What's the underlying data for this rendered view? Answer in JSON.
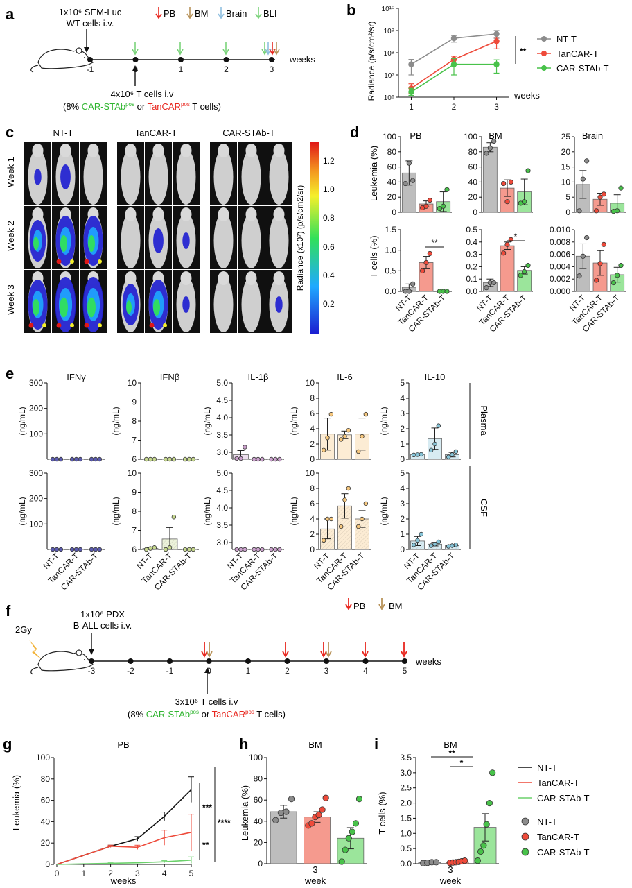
{
  "colors": {
    "ntt": "#8c8c8c",
    "tancar": "#ee4a3a",
    "stab": "#48c24a",
    "ntt_line": "#111111",
    "tancar_line": "#ee4a3a",
    "stab_line": "#6bd16b",
    "pb_arrow": "#e8271f",
    "bm_arrow": "#b8935a",
    "brain_arrow": "#8fbfe0",
    "bli_arrow": "#7bd37b",
    "cyt_ifng": "#5b5bb0",
    "cyt_ifnb": "#c7d98f",
    "cyt_il1b": "#caa0cc",
    "cyt_il6": "#f6c77d",
    "cyt_il10": "#86c4d8"
  },
  "panel_a": {
    "letter": "a",
    "injection_label": [
      "1x10⁶ SEM-Luc",
      "WT cells i.v."
    ],
    "legend": [
      {
        "label": "PB",
        "icon": "red-arrow-icon"
      },
      {
        "label": "BM",
        "icon": "brown-arrow-icon"
      },
      {
        "label": "Brain",
        "icon": "blue-arrow-icon"
      },
      {
        "label": "BLI",
        "icon": "green-arrow-icon"
      }
    ],
    "timeline_ticks": [
      "-1",
      "0",
      "1",
      "2",
      "3"
    ],
    "timeline_unit": "weeks",
    "tcell_label_line1": "4x10⁶ T cells i.v",
    "tcell_label_open": "(8% ",
    "tcell_stab": "CAR-STAb",
    "tcell_pos": "pos",
    "tcell_or": " or ",
    "tcell_tancar": "TanCAR",
    "tcell_close": " T cells)"
  },
  "panel_b": {
    "letter": "b",
    "ylabel": "Radiance (p/s/cm²/sr)",
    "xlabel": "weeks",
    "significance": "**",
    "legend": [
      "NT-T",
      "TanCAR-T",
      "CAR-STAb-T"
    ]
  },
  "panel_c": {
    "letter": "c",
    "groups": [
      "NT-T",
      "TanCAR-T",
      "CAR-STAb-T"
    ],
    "rows": [
      "Week 1",
      "Week 2",
      "Week 3"
    ],
    "colorbar_label": "Radiance (x10⁷) (p/s/cm2/sr)",
    "colorbar_ticks": [
      "1.2",
      "1.0",
      "0.8",
      "0.6",
      "0.4",
      "0.2"
    ]
  },
  "panel_d": {
    "letter": "d",
    "columns": [
      "PB",
      "BM",
      "Brain"
    ],
    "ylabel_top": "Leukemia (%)",
    "ylabel_bottom": "T cells (%)",
    "groups": [
      "NT-T",
      "TanCAR-T",
      "CAR-STAb-T"
    ],
    "sig_pb": "**",
    "sig_bm": "*"
  },
  "panel_e": {
    "letter": "e",
    "cytokines": [
      "IFNγ",
      "IFNβ",
      "IL-1β",
      "IL-6",
      "IL-10"
    ],
    "unit": "(ng/mL)",
    "row_labels": [
      "Plasma",
      "CSF"
    ],
    "groups": [
      "NT-T",
      "TanCAR-T",
      "CAR-STAb-T"
    ]
  },
  "panel_f": {
    "letter": "f",
    "irradiation": "2Gy",
    "injection_label": [
      "1x10⁶ PDX",
      "B-ALL cells i.v."
    ],
    "legend": [
      {
        "label": "PB",
        "icon": "red-arrow-icon"
      },
      {
        "label": "BM",
        "icon": "brown-arrow-icon"
      }
    ],
    "timeline_ticks": [
      "-3",
      "-2",
      "-1",
      "0",
      "1",
      "2",
      "3",
      "4",
      "5"
    ],
    "timeline_unit": "weeks",
    "tcell_label_line1": "3x10⁶ T cells i.v",
    "tcell_label_open": "(8% ",
    "tcell_stab": "CAR-STAb",
    "tcell_pos": "pos",
    "tcell_or": " or ",
    "tcell_tancar": "TanCAR",
    "tcell_close": " T cells)"
  },
  "panel_g": {
    "letter": "g",
    "title": "PB",
    "ylabel": "Leukemia (%)",
    "xlabel": "weeks",
    "sig": [
      "***",
      "**",
      "****"
    ]
  },
  "panel_h": {
    "letter": "h",
    "title": "BM",
    "ylabel": "Leukemia (%)",
    "xtick": "3",
    "xlabel": "week"
  },
  "panel_i": {
    "letter": "i",
    "title": "BM",
    "ylabel": "T cells (%)",
    "xtick": "3",
    "xlabel": "week",
    "sig": [
      "**",
      "*"
    ]
  },
  "legend_gi": {
    "lines": [
      "NT-T",
      "TanCAR-T",
      "CAR-STAb-T"
    ],
    "dots": [
      "NT-T",
      "TanCAR-T",
      "CAR-STAb-T"
    ]
  },
  "chart_data": [
    {
      "id": "b",
      "type": "line",
      "x": [
        1,
        2,
        3
      ],
      "xlim": [
        0.7,
        3.3
      ],
      "yscale": "log",
      "ylim": [
        1000000,
        10000000000
      ],
      "ytick_labels": [
        "10⁶",
        "10⁷",
        "10⁸",
        "10⁹",
        "10¹⁰"
      ],
      "xtick_labels": [
        "1",
        "2",
        "3"
      ],
      "series": [
        {
          "name": "NT-T",
          "values": [
            30000000,
            450000000,
            700000000
          ],
          "err": [
            [
              10000000,
              50000000
            ],
            [
              300000000,
              600000000
            ],
            [
              450000000,
              1000000000
            ]
          ]
        },
        {
          "name": "TanCAR-T",
          "values": [
            2500000,
            50000000,
            330000000
          ],
          "err": [
            [
              1500000,
              4000000
            ],
            [
              30000000,
              70000000
            ],
            [
              150000000,
              500000000
            ]
          ]
        },
        {
          "name": "CAR-STAb-T",
          "values": [
            1700000,
            30000000,
            30000000
          ],
          "err": [
            [
              1200000,
              2500000
            ],
            [
              10000000,
              55000000
            ],
            [
              12000000,
              48000000
            ]
          ]
        }
      ]
    },
    {
      "id": "d",
      "type": "bar",
      "categories": [
        "NT-T",
        "TanCAR-T",
        "CAR-STAb-T"
      ],
      "panels": [
        {
          "title": "PB",
          "measure": "Leukemia (%)",
          "ylim": [
            0,
            100
          ],
          "yticks": [
            "0",
            "20",
            "40",
            "60",
            "80",
            "100"
          ],
          "values": [
            52,
            11,
            14
          ],
          "sem": [
            16,
            4,
            13
          ],
          "points": [
            [
              38,
              65,
              42
            ],
            [
              6,
              8,
              16
            ],
            [
              5,
              8,
              30
            ]
          ]
        },
        {
          "title": "BM",
          "measure": "Leukemia (%)",
          "ylim": [
            0,
            100
          ],
          "yticks": [
            "0",
            "20",
            "40",
            "60",
            "80",
            "100"
          ],
          "values": [
            86,
            32,
            27
          ],
          "sem": [
            6,
            11,
            17
          ],
          "points": [
            [
              78,
              85,
              94
            ],
            [
              38,
              14,
              40
            ],
            [
              12,
              14,
              55
            ]
          ]
        },
        {
          "title": "Brain",
          "measure": "Leukemia (%)",
          "ylim": [
            0,
            25
          ],
          "yticks": [
            "0",
            "5",
            "10",
            "15",
            "20",
            "25"
          ],
          "values": [
            9.2,
            4.3,
            3.0
          ],
          "sem": [
            4.6,
            2.0,
            2.8
          ],
          "points": [
            [
              0.5,
              11,
              17
            ],
            [
              0.5,
              5,
              6
            ],
            [
              0.3,
              0.5,
              8
            ]
          ]
        },
        {
          "title": "PB",
          "measure": "T cells (%)",
          "ylim": [
            0,
            1.5
          ],
          "yticks": [
            "0.0",
            "0.5",
            "1.0",
            "1.5"
          ],
          "values": [
            0.1,
            0.7,
            0.0
          ],
          "sem": [
            0.08,
            0.15,
            0.005
          ],
          "points": [
            [
              0.0,
              0.0,
              0.18
            ],
            [
              0.5,
              0.7,
              0.92
            ],
            [
              0.0,
              0.0,
              0.0
            ]
          ]
        },
        {
          "title": "BM",
          "measure": "T cells (%)",
          "ylim": [
            0,
            0.5
          ],
          "yticks": [
            "0.0",
            "0.1",
            "0.2",
            "0.3",
            "0.4",
            "0.5"
          ],
          "values": [
            0.07,
            0.37,
            0.17
          ],
          "sem": [
            0.03,
            0.03,
            0.03
          ],
          "points": [
            [
              0.03,
              0.07,
              0.07
            ],
            [
              0.31,
              0.38,
              0.42
            ],
            [
              0.13,
              0.16,
              0.21
            ]
          ]
        },
        {
          "title": "Brain",
          "measure": "T cells (%)",
          "ylim": [
            0,
            0.01
          ],
          "yticks": [
            "0.000",
            "0.002",
            "0.004",
            "0.006",
            "0.008",
            "0.010"
          ],
          "values": [
            0.0057,
            0.0046,
            0.0027
          ],
          "sem": [
            0.002,
            0.002,
            0.0012
          ],
          "points": [
            [
              0.0025,
              0.0057,
              0.0087
            ],
            [
              0.0018,
              0.0045,
              0.0076
            ],
            [
              0.0014,
              0.0026,
              0.0042
            ]
          ]
        }
      ]
    },
    {
      "id": "e",
      "type": "bar",
      "categories": [
        "NT-T",
        "TanCAR-T",
        "CAR-STAb-T"
      ],
      "panels": [
        {
          "title": "IFNγ",
          "row": "Plasma",
          "ymin": 0,
          "ymax": 300,
          "yticks": [
            "100",
            "200",
            "300"
          ],
          "values": [
            0,
            0,
            0
          ],
          "points": [
            [
              0,
              0,
              0
            ],
            [
              0,
              0,
              0
            ],
            [
              0,
              0,
              0
            ]
          ]
        },
        {
          "title": "IFNβ",
          "row": "Plasma",
          "ymin": 6,
          "ymax": 10,
          "yticks": [
            "6",
            "7",
            "8",
            "9",
            "10"
          ],
          "values": [
            6,
            6,
            6
          ],
          "points": [
            [
              6,
              6,
              6
            ],
            [
              6,
              6,
              6
            ],
            [
              6,
              6,
              6
            ]
          ]
        },
        {
          "title": "IL-1β",
          "row": "Plasma",
          "ymin": 2.8,
          "ymax": 5.0,
          "yticks": [
            "3.0",
            "3.5",
            "4.0",
            "4.5",
            "5.0"
          ],
          "values": [
            2.93,
            2.8,
            2.8
          ],
          "sem": [
            0.12,
            0,
            0
          ],
          "points": [
            [
              2.82,
              2.82,
              3.15
            ],
            [
              2.8,
              2.8,
              2.8
            ],
            [
              2.8,
              2.8,
              2.8
            ]
          ]
        },
        {
          "title": "IL-6",
          "row": "Plasma",
          "ymin": 0,
          "ymax": 10,
          "yticks": [
            "0",
            "2",
            "4",
            "6",
            "8",
            "10"
          ],
          "values": [
            3.3,
            3.2,
            3.3
          ],
          "sem": [
            2.1,
            0.5,
            2.1
          ],
          "points": [
            [
              1.2,
              2.8,
              5.9
            ],
            [
              2.6,
              3.0,
              3.8
            ],
            [
              1.0,
              3.0,
              5.9
            ]
          ]
        },
        {
          "title": "IL-10",
          "row": "Plasma",
          "ymin": 0,
          "ymax": 5,
          "yticks": [
            "0",
            "1",
            "2",
            "3",
            "4",
            "5"
          ],
          "values": [
            0.3,
            1.35,
            0.3
          ],
          "sem": [
            0.05,
            0.7,
            0.15
          ],
          "points": [
            [
              0.28,
              0.3,
              0.32
            ],
            [
              0.6,
              1.0,
              2.2
            ],
            [
              0.15,
              0.3,
              0.5
            ]
          ]
        },
        {
          "title": "IFNγ",
          "row": "CSF",
          "ymin": 0,
          "ymax": 300,
          "yticks": [
            "100",
            "200",
            "300"
          ],
          "values": [
            0,
            0,
            0
          ],
          "points": [
            [
              0,
              0,
              0
            ],
            [
              0,
              0,
              0
            ],
            [
              0,
              0,
              0
            ]
          ]
        },
        {
          "title": "IFNβ",
          "row": "CSF",
          "ymin": 6,
          "ymax": 10,
          "yticks": [
            "6",
            "7",
            "8",
            "9",
            "10"
          ],
          "values": [
            6.05,
            6.55,
            6.0
          ],
          "sem": [
            0.05,
            0.6,
            0
          ],
          "points": [
            [
              6.0,
              6.05,
              6.1
            ],
            [
              6.0,
              6.1,
              7.7
            ],
            [
              6.0,
              6.0,
              6.0
            ]
          ]
        },
        {
          "title": "IL-1β",
          "row": "CSF",
          "ymin": 2.8,
          "ymax": 5.0,
          "yticks": [
            "3.0",
            "3.5",
            "4.0",
            "4.5",
            "5.0"
          ],
          "values": [
            2.8,
            2.8,
            2.8
          ],
          "points": [
            [
              2.8,
              2.8,
              2.8
            ],
            [
              2.8,
              2.8,
              2.8
            ],
            [
              2.8,
              2.8,
              2.8
            ]
          ]
        },
        {
          "title": "IL-6",
          "row": "CSF",
          "ymin": 0,
          "ymax": 10,
          "yticks": [
            "0",
            "2",
            "4",
            "6",
            "8",
            "10"
          ],
          "values": [
            2.7,
            5.7,
            4.0
          ],
          "sem": [
            1.3,
            1.6,
            1.1
          ],
          "points": [
            [
              1.2,
              4.0,
              4.0
            ],
            [
              3.0,
              6.5,
              8.0
            ],
            [
              3.0,
              4.0,
              6.0
            ]
          ]
        },
        {
          "title": "IL-10",
          "row": "CSF",
          "ymin": 0,
          "ymax": 5,
          "yticks": [
            "0",
            "1",
            "2",
            "3",
            "4",
            "5"
          ],
          "values": [
            0.55,
            0.35,
            0.25
          ],
          "sem": [
            0.3,
            0.12,
            0.05
          ],
          "points": [
            [
              0.3,
              0.6,
              1.0
            ],
            [
              0.25,
              0.35,
              0.5
            ],
            [
              0.2,
              0.25,
              0.3
            ]
          ]
        }
      ]
    },
    {
      "id": "g",
      "type": "line",
      "title": "PB",
      "x": [
        0,
        1,
        2,
        3,
        4,
        5
      ],
      "xlim": [
        0,
        5
      ],
      "ylim": [
        0,
        100
      ],
      "yticks": [
        "0",
        "20",
        "40",
        "60",
        "80",
        "100"
      ],
      "xtick_labels": [
        "0",
        "1",
        "2",
        "3",
        "4",
        "5"
      ],
      "series": [
        {
          "name": "NT-T",
          "x": [
            0,
            2,
            3,
            4,
            5
          ],
          "values": [
            0,
            17,
            24,
            45,
            70
          ],
          "sem": [
            0,
            1,
            2,
            4,
            12
          ]
        },
        {
          "name": "TanCAR-T",
          "x": [
            0,
            2,
            3,
            4,
            5
          ],
          "values": [
            0,
            17,
            16,
            25,
            30
          ],
          "sem": [
            0,
            1,
            2,
            7,
            17
          ]
        },
        {
          "name": "CAR-STAb-T",
          "x": [
            0,
            2,
            3,
            4,
            5
          ],
          "values": [
            0,
            1,
            1.5,
            2.5,
            4
          ],
          "sem": [
            0,
            0.5,
            0.5,
            1,
            3
          ]
        }
      ]
    },
    {
      "id": "h",
      "type": "bar",
      "title": "BM",
      "categories": [
        "NT-T",
        "TanCAR-T",
        "CAR-STAb-T"
      ],
      "ylim": [
        0,
        100
      ],
      "yticks": [
        "0",
        "20",
        "40",
        "60",
        "80",
        "100"
      ],
      "values": [
        49,
        44,
        24
      ],
      "sem": [
        6,
        5,
        10
      ],
      "points": [
        [
          41,
          48,
          49,
          61
        ],
        [
          36,
          38,
          44,
          46,
          51,
          62
        ],
        [
          2,
          13,
          24,
          30,
          38,
          61
        ]
      ]
    },
    {
      "id": "i",
      "type": "bar",
      "title": "BM",
      "categories": [
        "NT-T",
        "TanCAR-T",
        "CAR-STAb-T"
      ],
      "ylim": [
        0,
        3.5
      ],
      "yticks": [
        "0.0",
        "0.5",
        "1.0",
        "1.5",
        "2.0",
        "2.5",
        "3.0",
        "3.5"
      ],
      "values": [
        0.04,
        0.06,
        1.2
      ],
      "sem": [
        0.01,
        0.02,
        0.45
      ],
      "points": [
        [
          0.02,
          0.03,
          0.05,
          0.05
        ],
        [
          0.03,
          0.04,
          0.05,
          0.06,
          0.08,
          0.1
        ],
        [
          0.1,
          0.4,
          0.6,
          1.3,
          2.0,
          3.0
        ]
      ]
    }
  ]
}
